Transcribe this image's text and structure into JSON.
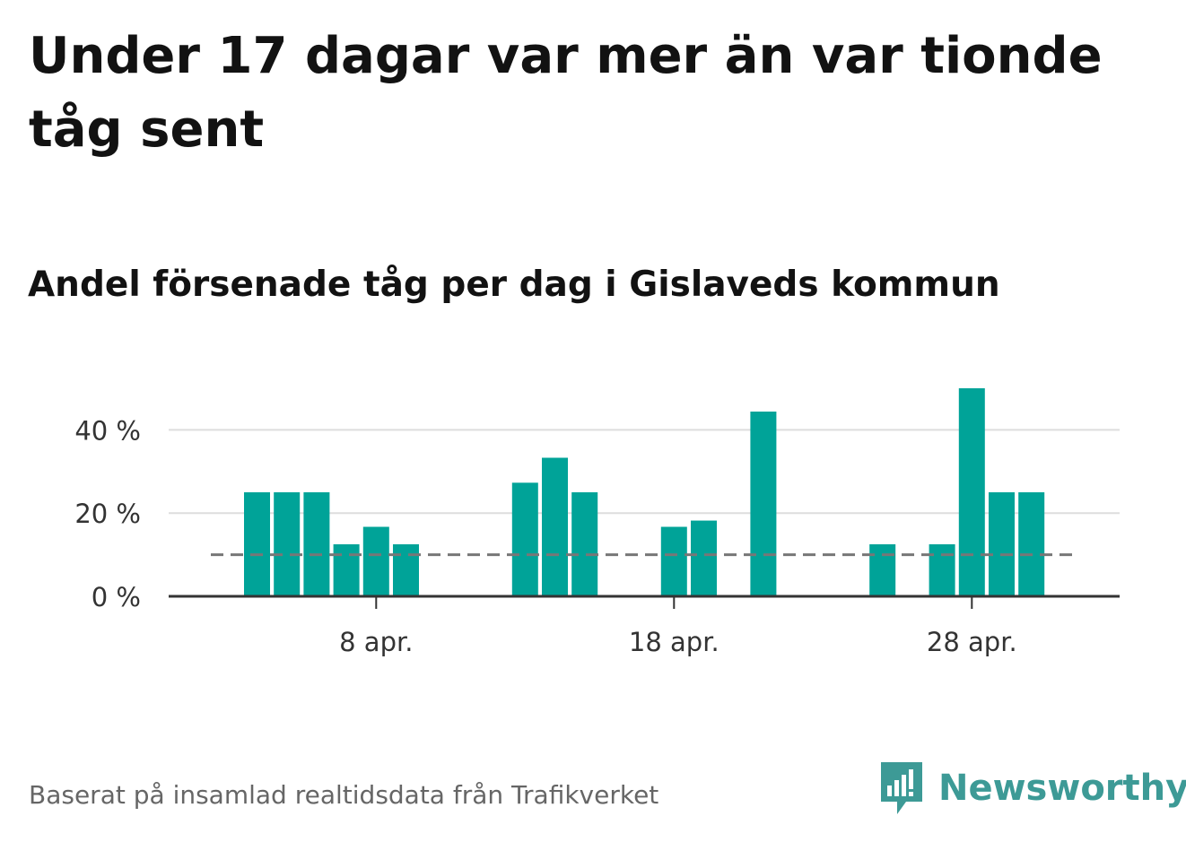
{
  "title": "Under 17 dagar var mer än var tionde tåg sent",
  "subtitle": "Andel försenade tåg per dag i Gislaveds kommun",
  "footnote": "Baserat på insamlad realtidsdata från Trafikverket",
  "logo_text": "Newsworthy",
  "colors": {
    "bar": "#00a398",
    "grid": "#dddddd",
    "axis": "#333333",
    "threshold": "#777777",
    "logo": "#3d9a96"
  },
  "chart_data": {
    "type": "bar",
    "x": [
      "2 apr.",
      "3 apr.",
      "4 apr.",
      "5 apr.",
      "6 apr.",
      "7 apr.",
      "8 apr.",
      "9 apr.",
      "10 apr.",
      "11 apr.",
      "12 apr.",
      "13 apr.",
      "14 apr.",
      "15 apr.",
      "16 apr.",
      "17 apr.",
      "18 apr.",
      "19 apr.",
      "20 apr.",
      "21 apr.",
      "22 apr.",
      "23 apr.",
      "24 apr.",
      "25 apr.",
      "26 apr.",
      "27 apr.",
      "28 apr.",
      "29 apr.",
      "30 apr."
    ],
    "values": [
      0,
      0,
      25,
      25,
      25,
      12.5,
      16.7,
      12.5,
      0,
      0,
      0,
      27.3,
      33.3,
      25,
      0,
      0,
      16.7,
      18.2,
      0,
      44.4,
      0,
      0,
      0,
      12.5,
      0,
      12.5,
      50,
      25,
      25
    ],
    "ylim": [
      0,
      50
    ],
    "yticks": [
      0,
      20,
      40
    ],
    "ytick_labels": [
      "0 %",
      "20 %",
      "40 %"
    ],
    "xtick_labels": [
      "8 apr.",
      "18 apr.",
      "28 apr."
    ],
    "xtick_positions": [
      "8 apr.",
      "18 apr.",
      "28 apr."
    ],
    "threshold": 10,
    "grid": true
  }
}
